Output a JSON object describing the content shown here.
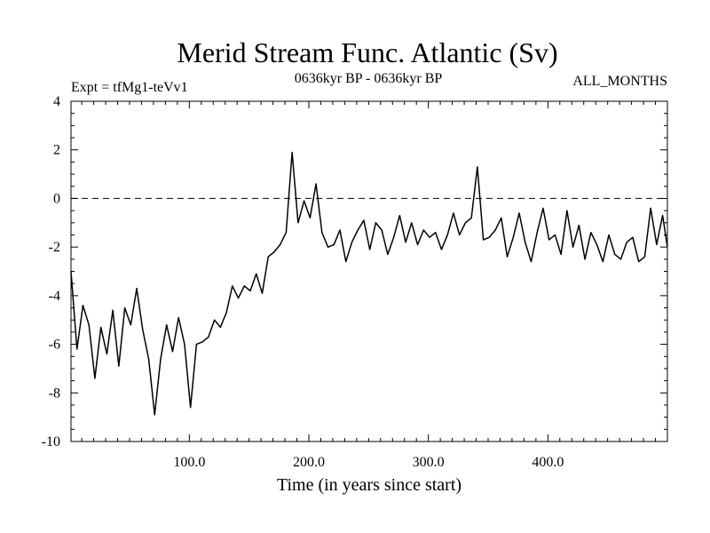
{
  "chart_data": {
    "type": "line",
    "title": "Merid Stream Func. Atlantic (Sv)",
    "subtitle_left": "Expt = tfMg1-teVv1",
    "subtitle_center": "0636kyr BP - 0636kyr BP",
    "subtitle_right": "ALL_MONTHS",
    "xlabel": "Time (in years since start)",
    "ylabel": "",
    "xlim": [
      1,
      500
    ],
    "ylim": [
      -10,
      4
    ],
    "x_ticks": [
      100,
      200,
      300,
      400
    ],
    "x_tick_labels": [
      "100.0",
      "200.0",
      "300.0",
      "400.0"
    ],
    "y_ticks": [
      -10,
      -8,
      -6,
      -4,
      -2,
      0,
      2,
      4
    ],
    "y_tick_labels": [
      "-10",
      "-8",
      "-6",
      "-4",
      "-2",
      "0",
      "2",
      "4"
    ],
    "reference_line": {
      "y": 0,
      "style": "dashed"
    },
    "grid": false,
    "line_color": "#000000",
    "series": [
      {
        "x": [
          1,
          6,
          11,
          16,
          21,
          26,
          31,
          36,
          41,
          46,
          51,
          56,
          61,
          66,
          71,
          76,
          81,
          86,
          91,
          96,
          101,
          106,
          111,
          116,
          121,
          126,
          131,
          136,
          141,
          146,
          151,
          156,
          161,
          166,
          171,
          176,
          181,
          186,
          191,
          196,
          201,
          206,
          211,
          216,
          221,
          226,
          231,
          236,
          241,
          246,
          251,
          256,
          261,
          266,
          271,
          276,
          281,
          286,
          291,
          296,
          301,
          306,
          311,
          316,
          321,
          326,
          331,
          336,
          341,
          346,
          351,
          356,
          361,
          366,
          371,
          376,
          381,
          386,
          391,
          396,
          401,
          406,
          411,
          416,
          421,
          426,
          431,
          436,
          441,
          446,
          451,
          456,
          461,
          466,
          471,
          476,
          481,
          486,
          491,
          496,
          500
        ],
        "y": [
          -3.0,
          -6.2,
          -4.4,
          -5.2,
          -7.4,
          -5.3,
          -6.4,
          -4.6,
          -6.9,
          -4.5,
          -5.2,
          -3.7,
          -5.4,
          -6.6,
          -8.9,
          -6.6,
          -5.2,
          -6.3,
          -4.9,
          -6.0,
          -8.6,
          -6.0,
          -5.9,
          -5.7,
          -5.0,
          -5.3,
          -4.7,
          -3.6,
          -4.1,
          -3.6,
          -3.8,
          -3.1,
          -3.9,
          -2.4,
          -2.2,
          -1.9,
          -1.4,
          1.9,
          -1.0,
          -0.1,
          -0.8,
          0.6,
          -1.4,
          -2.0,
          -1.9,
          -1.3,
          -2.6,
          -1.8,
          -1.3,
          -0.9,
          -2.1,
          -1.0,
          -1.3,
          -2.3,
          -1.6,
          -0.7,
          -1.8,
          -1.0,
          -1.9,
          -1.3,
          -1.6,
          -1.4,
          -2.1,
          -1.5,
          -0.6,
          -1.5,
          -1.0,
          -0.8,
          1.3,
          -1.7,
          -1.6,
          -1.3,
          -0.8,
          -2.4,
          -1.6,
          -0.6,
          -1.8,
          -2.6,
          -1.4,
          -0.4,
          -1.7,
          -1.5,
          -2.3,
          -0.5,
          -2.0,
          -1.1,
          -2.5,
          -1.4,
          -1.9,
          -2.6,
          -1.5,
          -2.3,
          -2.5,
          -1.8,
          -1.6,
          -2.6,
          -2.4,
          -0.4,
          -1.9,
          -0.7,
          -2.0
        ]
      }
    ]
  }
}
